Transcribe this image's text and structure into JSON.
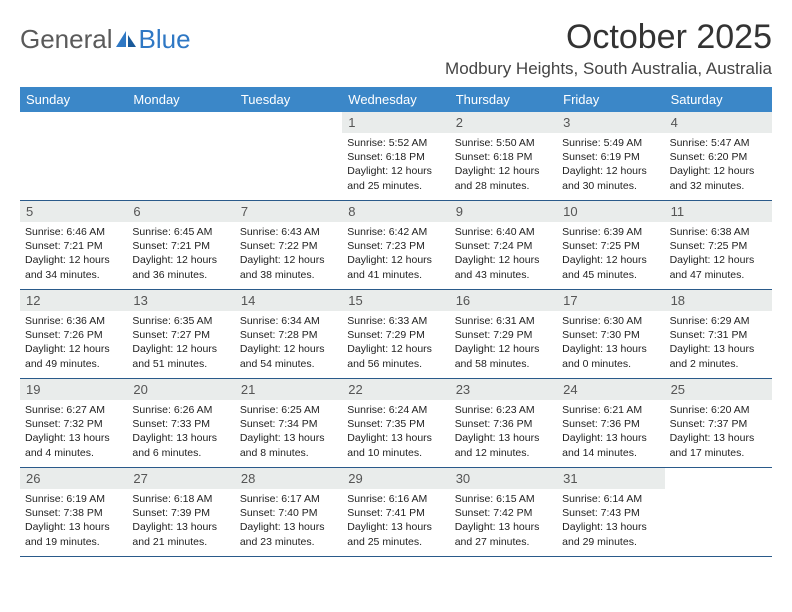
{
  "logo": {
    "text1": "General",
    "text2": "Blue"
  },
  "title": "October 2025",
  "location": "Modbury Heights, South Australia, Australia",
  "colors": {
    "header_bg": "#3b87c8",
    "header_text": "#ffffff",
    "daynum_bg": "#e9eceb",
    "week_border": "#2a5a8a",
    "logo_accent": "#2f78c4",
    "body_text": "#222222"
  },
  "typography": {
    "title_fontsize": 34,
    "location_fontsize": 17,
    "dayheader_fontsize": 13,
    "cell_fontsize": 10.5
  },
  "day_names": [
    "Sunday",
    "Monday",
    "Tuesday",
    "Wednesday",
    "Thursday",
    "Friday",
    "Saturday"
  ],
  "weeks": [
    [
      {
        "n": "",
        "sunrise": "",
        "sunset": "",
        "day": ""
      },
      {
        "n": "",
        "sunrise": "",
        "sunset": "",
        "day": ""
      },
      {
        "n": "",
        "sunrise": "",
        "sunset": "",
        "day": ""
      },
      {
        "n": "1",
        "sunrise": "Sunrise: 5:52 AM",
        "sunset": "Sunset: 6:18 PM",
        "day": "Daylight: 12 hours and 25 minutes."
      },
      {
        "n": "2",
        "sunrise": "Sunrise: 5:50 AM",
        "sunset": "Sunset: 6:18 PM",
        "day": "Daylight: 12 hours and 28 minutes."
      },
      {
        "n": "3",
        "sunrise": "Sunrise: 5:49 AM",
        "sunset": "Sunset: 6:19 PM",
        "day": "Daylight: 12 hours and 30 minutes."
      },
      {
        "n": "4",
        "sunrise": "Sunrise: 5:47 AM",
        "sunset": "Sunset: 6:20 PM",
        "day": "Daylight: 12 hours and 32 minutes."
      }
    ],
    [
      {
        "n": "5",
        "sunrise": "Sunrise: 6:46 AM",
        "sunset": "Sunset: 7:21 PM",
        "day": "Daylight: 12 hours and 34 minutes."
      },
      {
        "n": "6",
        "sunrise": "Sunrise: 6:45 AM",
        "sunset": "Sunset: 7:21 PM",
        "day": "Daylight: 12 hours and 36 minutes."
      },
      {
        "n": "7",
        "sunrise": "Sunrise: 6:43 AM",
        "sunset": "Sunset: 7:22 PM",
        "day": "Daylight: 12 hours and 38 minutes."
      },
      {
        "n": "8",
        "sunrise": "Sunrise: 6:42 AM",
        "sunset": "Sunset: 7:23 PM",
        "day": "Daylight: 12 hours and 41 minutes."
      },
      {
        "n": "9",
        "sunrise": "Sunrise: 6:40 AM",
        "sunset": "Sunset: 7:24 PM",
        "day": "Daylight: 12 hours and 43 minutes."
      },
      {
        "n": "10",
        "sunrise": "Sunrise: 6:39 AM",
        "sunset": "Sunset: 7:25 PM",
        "day": "Daylight: 12 hours and 45 minutes."
      },
      {
        "n": "11",
        "sunrise": "Sunrise: 6:38 AM",
        "sunset": "Sunset: 7:25 PM",
        "day": "Daylight: 12 hours and 47 minutes."
      }
    ],
    [
      {
        "n": "12",
        "sunrise": "Sunrise: 6:36 AM",
        "sunset": "Sunset: 7:26 PM",
        "day": "Daylight: 12 hours and 49 minutes."
      },
      {
        "n": "13",
        "sunrise": "Sunrise: 6:35 AM",
        "sunset": "Sunset: 7:27 PM",
        "day": "Daylight: 12 hours and 51 minutes."
      },
      {
        "n": "14",
        "sunrise": "Sunrise: 6:34 AM",
        "sunset": "Sunset: 7:28 PM",
        "day": "Daylight: 12 hours and 54 minutes."
      },
      {
        "n": "15",
        "sunrise": "Sunrise: 6:33 AM",
        "sunset": "Sunset: 7:29 PM",
        "day": "Daylight: 12 hours and 56 minutes."
      },
      {
        "n": "16",
        "sunrise": "Sunrise: 6:31 AM",
        "sunset": "Sunset: 7:29 PM",
        "day": "Daylight: 12 hours and 58 minutes."
      },
      {
        "n": "17",
        "sunrise": "Sunrise: 6:30 AM",
        "sunset": "Sunset: 7:30 PM",
        "day": "Daylight: 13 hours and 0 minutes."
      },
      {
        "n": "18",
        "sunrise": "Sunrise: 6:29 AM",
        "sunset": "Sunset: 7:31 PM",
        "day": "Daylight: 13 hours and 2 minutes."
      }
    ],
    [
      {
        "n": "19",
        "sunrise": "Sunrise: 6:27 AM",
        "sunset": "Sunset: 7:32 PM",
        "day": "Daylight: 13 hours and 4 minutes."
      },
      {
        "n": "20",
        "sunrise": "Sunrise: 6:26 AM",
        "sunset": "Sunset: 7:33 PM",
        "day": "Daylight: 13 hours and 6 minutes."
      },
      {
        "n": "21",
        "sunrise": "Sunrise: 6:25 AM",
        "sunset": "Sunset: 7:34 PM",
        "day": "Daylight: 13 hours and 8 minutes."
      },
      {
        "n": "22",
        "sunrise": "Sunrise: 6:24 AM",
        "sunset": "Sunset: 7:35 PM",
        "day": "Daylight: 13 hours and 10 minutes."
      },
      {
        "n": "23",
        "sunrise": "Sunrise: 6:23 AM",
        "sunset": "Sunset: 7:36 PM",
        "day": "Daylight: 13 hours and 12 minutes."
      },
      {
        "n": "24",
        "sunrise": "Sunrise: 6:21 AM",
        "sunset": "Sunset: 7:36 PM",
        "day": "Daylight: 13 hours and 14 minutes."
      },
      {
        "n": "25",
        "sunrise": "Sunrise: 6:20 AM",
        "sunset": "Sunset: 7:37 PM",
        "day": "Daylight: 13 hours and 17 minutes."
      }
    ],
    [
      {
        "n": "26",
        "sunrise": "Sunrise: 6:19 AM",
        "sunset": "Sunset: 7:38 PM",
        "day": "Daylight: 13 hours and 19 minutes."
      },
      {
        "n": "27",
        "sunrise": "Sunrise: 6:18 AM",
        "sunset": "Sunset: 7:39 PM",
        "day": "Daylight: 13 hours and 21 minutes."
      },
      {
        "n": "28",
        "sunrise": "Sunrise: 6:17 AM",
        "sunset": "Sunset: 7:40 PM",
        "day": "Daylight: 13 hours and 23 minutes."
      },
      {
        "n": "29",
        "sunrise": "Sunrise: 6:16 AM",
        "sunset": "Sunset: 7:41 PM",
        "day": "Daylight: 13 hours and 25 minutes."
      },
      {
        "n": "30",
        "sunrise": "Sunrise: 6:15 AM",
        "sunset": "Sunset: 7:42 PM",
        "day": "Daylight: 13 hours and 27 minutes."
      },
      {
        "n": "31",
        "sunrise": "Sunrise: 6:14 AM",
        "sunset": "Sunset: 7:43 PM",
        "day": "Daylight: 13 hours and 29 minutes."
      },
      {
        "n": "",
        "sunrise": "",
        "sunset": "",
        "day": ""
      }
    ]
  ]
}
